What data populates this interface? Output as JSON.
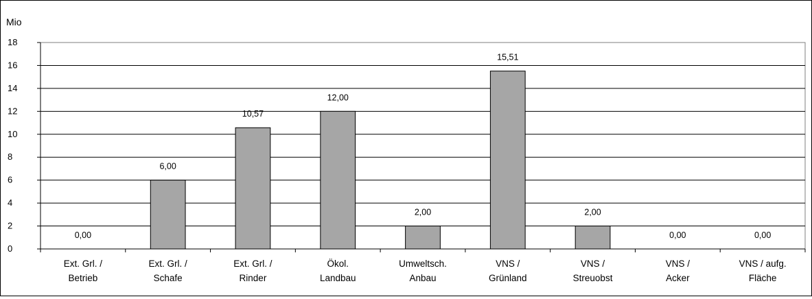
{
  "chart_data": {
    "type": "bar",
    "ylabel": "Mio",
    "ylim": [
      0,
      18
    ],
    "yticks": [
      0,
      2,
      4,
      6,
      8,
      10,
      12,
      14,
      16,
      18
    ],
    "grid": true,
    "categories": [
      [
        "Ext. Grl. /",
        "Betrieb"
      ],
      [
        "Ext. Grl. /",
        "Schafe"
      ],
      [
        "Ext. Grl. /",
        "Rinder"
      ],
      [
        "Ökol.",
        "Landbau"
      ],
      [
        "Umweltsch.",
        "Anbau"
      ],
      [
        "VNS /",
        "Grünland"
      ],
      [
        "VNS /",
        "Streuobst"
      ],
      [
        "VNS /",
        "Acker"
      ],
      [
        "VNS / aufg.",
        "Fläche"
      ]
    ],
    "values": [
      0.0,
      6.0,
      10.57,
      12.0,
      2.0,
      15.51,
      2.0,
      0.0,
      0.0
    ],
    "data_labels": [
      "0,00",
      "6,00",
      "10,57",
      "12,00",
      "2,00",
      "15,51",
      "2,00",
      "0,00",
      "0,00"
    ],
    "bar_color": "#a6a6a6"
  }
}
